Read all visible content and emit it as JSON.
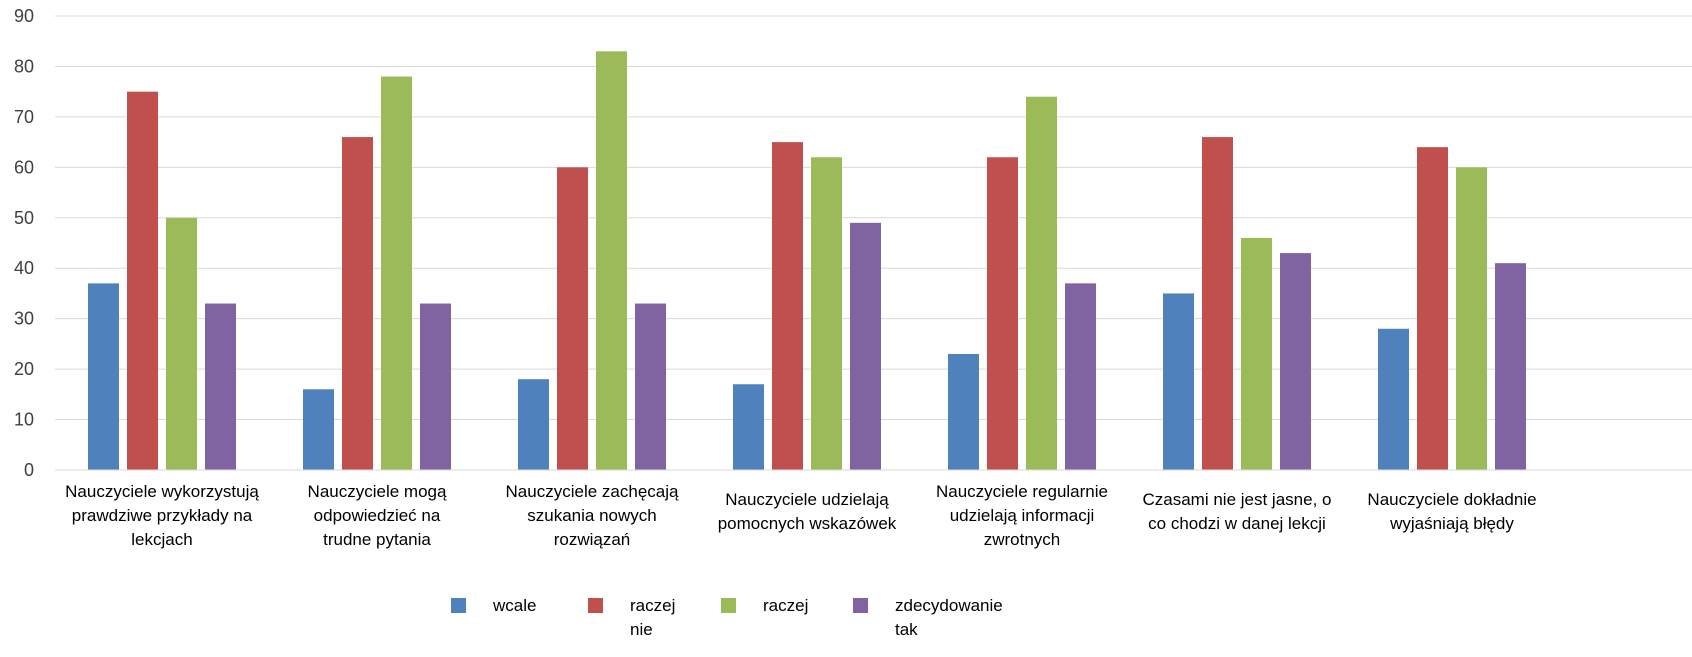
{
  "chart_data": {
    "type": "bar",
    "categories": [
      [
        "Nauczyciele wykorzystują",
        "prawdziwe przykłady na",
        "lekcjach"
      ],
      [
        "Nauczyciele mogą",
        "odpowiedzieć na",
        "trudne pytania"
      ],
      [
        "Nauczyciele zachęcają",
        "szukania nowych",
        "rozwiązań"
      ],
      [
        "Nauczyciele udzielają",
        "pomocnych wskazówek"
      ],
      [
        "Nauczyciele regularnie",
        "udzielają informacji",
        "zwrotnych"
      ],
      [
        "Czasami nie jest jasne, o",
        "co chodzi w danej lekcji"
      ],
      [
        "Nauczyciele dokładnie",
        "wyjaśniają błędy"
      ]
    ],
    "series": [
      {
        "name": [
          "wcale"
        ],
        "color": "#4F81BD",
        "values": [
          37,
          16,
          18,
          17,
          23,
          35,
          28
        ]
      },
      {
        "name": [
          "raczej",
          "nie"
        ],
        "color": "#C0504D",
        "values": [
          75,
          66,
          60,
          65,
          62,
          66,
          64
        ]
      },
      {
        "name": [
          "raczej"
        ],
        "color": "#9BBB59",
        "values": [
          50,
          78,
          83,
          62,
          74,
          46,
          60
        ]
      },
      {
        "name": [
          "zdecydowanie",
          "tak"
        ],
        "color": "#8064A2",
        "values": [
          33,
          33,
          33,
          49,
          37,
          43,
          41
        ]
      }
    ],
    "ylim": [
      0,
      90
    ],
    "yticks": [
      0,
      10,
      20,
      30,
      40,
      50,
      60,
      70,
      80,
      90
    ],
    "grid": true,
    "legend_position": "bottom",
    "title": "",
    "xlabel": "",
    "ylabel": ""
  }
}
